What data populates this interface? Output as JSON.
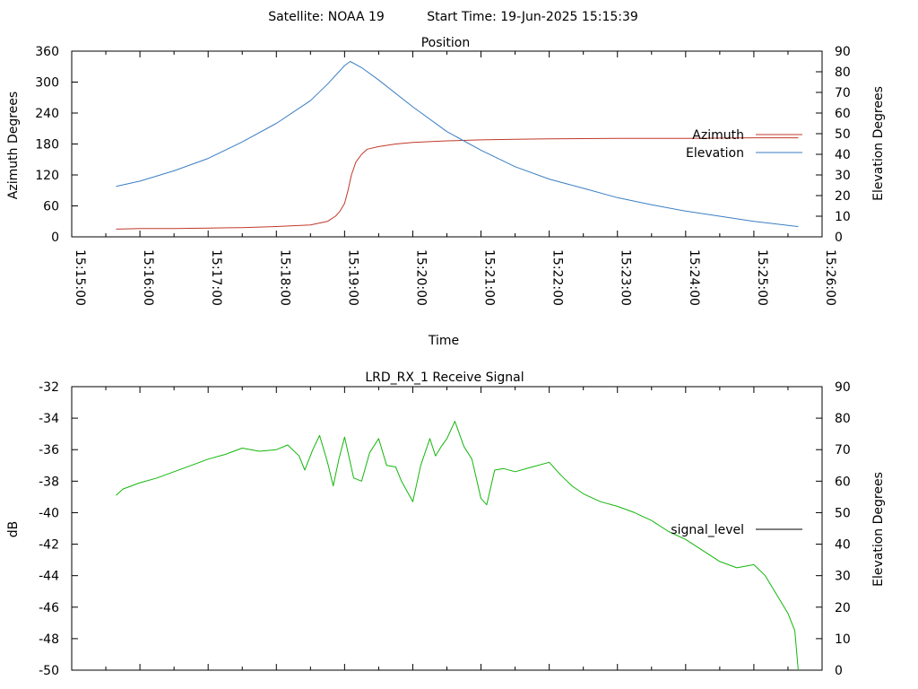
{
  "header": {
    "satellite": "Satellite: NOAA 19",
    "start_time": "Start Time: 19-Jun-2025 15:15:39"
  },
  "colors": {
    "azimuth": "#c0392b",
    "elevation": "#3a7ec4",
    "signal": "#13b60b",
    "legend_signal": "#000000",
    "axis": "#000000"
  },
  "chart_data": [
    {
      "type": "line",
      "title": "Position",
      "xlabel": "Time",
      "ylabel": "Azimuth Degrees",
      "y2label": "Elevation Degrees",
      "xlim": [
        "15:15:00",
        "15:26:00"
      ],
      "ylim": [
        0,
        360
      ],
      "y2lim": [
        0,
        90
      ],
      "x_ticks": [
        "15:15:00",
        "15:16:00",
        "15:17:00",
        "15:18:00",
        "15:19:00",
        "15:20:00",
        "15:21:00",
        "15:22:00",
        "15:23:00",
        "15:24:00",
        "15:25:00",
        "15:26:00"
      ],
      "y_ticks": [
        0,
        60,
        120,
        180,
        240,
        300,
        360
      ],
      "y2_ticks": [
        0,
        10,
        20,
        30,
        40,
        50,
        60,
        70,
        80,
        90
      ],
      "legend": "right",
      "series": [
        {
          "name": "Azimuth",
          "axis": "y",
          "x": [
            "15:15:39",
            "15:16:00",
            "15:16:30",
            "15:17:00",
            "15:17:30",
            "15:18:00",
            "15:18:30",
            "15:18:45",
            "15:18:52",
            "15:18:56",
            "15:19:00",
            "15:19:03",
            "15:19:06",
            "15:19:10",
            "15:19:15",
            "15:19:20",
            "15:19:30",
            "15:19:45",
            "15:20:00",
            "15:20:30",
            "15:21:00",
            "15:21:30",
            "15:22:00",
            "15:23:00",
            "15:24:00",
            "15:25:00",
            "15:25:39"
          ],
          "values": [
            15,
            16,
            16,
            17,
            18,
            20,
            23,
            30,
            40,
            50,
            65,
            90,
            120,
            145,
            160,
            170,
            175,
            180,
            183,
            186,
            188,
            189,
            190,
            191,
            191,
            192,
            192
          ]
        },
        {
          "name": "Elevation",
          "axis": "y2",
          "x": [
            "15:15:39",
            "15:16:00",
            "15:16:30",
            "15:17:00",
            "15:17:30",
            "15:18:00",
            "15:18:30",
            "15:18:45",
            "15:19:00",
            "15:19:05",
            "15:19:15",
            "15:19:30",
            "15:20:00",
            "15:20:30",
            "15:21:00",
            "15:21:30",
            "15:22:00",
            "15:22:30",
            "15:23:00",
            "15:23:30",
            "15:24:00",
            "15:24:30",
            "15:25:00",
            "15:25:39"
          ],
          "values": [
            24.5,
            27,
            32,
            38,
            46,
            55,
            66,
            74,
            83,
            85,
            82,
            76,
            63,
            51,
            42,
            34,
            28,
            23.5,
            19,
            15.5,
            12.5,
            10,
            7.5,
            5
          ]
        }
      ]
    },
    {
      "type": "line",
      "title": "LRD_RX_1 Receive Signal",
      "ylabel": "dB",
      "y2label": "Elevation Degrees",
      "xlim": [
        "15:15:00",
        "15:26:00"
      ],
      "ylim": [
        -50,
        -32
      ],
      "y2lim": [
        0,
        90
      ],
      "y_ticks": [
        -50,
        -48,
        -46,
        -44,
        -42,
        -40,
        -38,
        -36,
        -34,
        -32
      ],
      "y2_ticks": [
        0,
        10,
        20,
        30,
        40,
        50,
        60,
        70,
        80,
        90
      ],
      "legend": "right",
      "series": [
        {
          "name": "signal_level",
          "axis": "y",
          "x": [
            "15:15:39",
            "15:15:45",
            "15:16:00",
            "15:16:15",
            "15:16:30",
            "15:16:45",
            "15:17:00",
            "15:17:15",
            "15:17:30",
            "15:17:45",
            "15:18:00",
            "15:18:10",
            "15:18:20",
            "15:18:25",
            "15:18:32",
            "15:18:38",
            "15:18:45",
            "15:18:50",
            "15:18:55",
            "15:19:00",
            "15:19:08",
            "15:19:15",
            "15:19:22",
            "15:19:30",
            "15:19:37",
            "15:19:45",
            "15:19:50",
            "15:20:00",
            "15:20:07",
            "15:20:15",
            "15:20:20",
            "15:20:25",
            "15:20:30",
            "15:20:37",
            "15:20:45",
            "15:20:52",
            "15:21:00",
            "15:21:05",
            "15:21:12",
            "15:21:20",
            "15:21:30",
            "15:21:45",
            "15:22:00",
            "15:22:10",
            "15:22:20",
            "15:22:30",
            "15:22:45",
            "15:23:00",
            "15:23:15",
            "15:23:30",
            "15:23:45",
            "15:24:00",
            "15:24:15",
            "15:24:30",
            "15:24:45",
            "15:25:00",
            "15:25:10",
            "15:25:20",
            "15:25:30",
            "15:25:36",
            "15:25:39"
          ],
          "values": [
            -38.9,
            -38.5,
            -38.1,
            -37.8,
            -37.4,
            -37.0,
            -36.6,
            -36.3,
            -35.9,
            -36.1,
            -36.0,
            -35.7,
            -36.4,
            -37.3,
            -36.0,
            -35.1,
            -36.8,
            -38.3,
            -36.6,
            -35.2,
            -37.8,
            -38.0,
            -36.2,
            -35.3,
            -37.0,
            -37.1,
            -38.0,
            -39.3,
            -37.0,
            -35.3,
            -36.4,
            -35.8,
            -35.3,
            -34.2,
            -35.8,
            -36.6,
            -39.1,
            -39.5,
            -37.3,
            -37.2,
            -37.4,
            -37.1,
            -36.8,
            -37.6,
            -38.3,
            -38.8,
            -39.3,
            -39.6,
            -40.0,
            -40.5,
            -41.2,
            -41.7,
            -42.4,
            -43.1,
            -43.5,
            -43.3,
            -44.0,
            -45.2,
            -46.4,
            -47.5,
            -50.0
          ]
        }
      ]
    }
  ]
}
